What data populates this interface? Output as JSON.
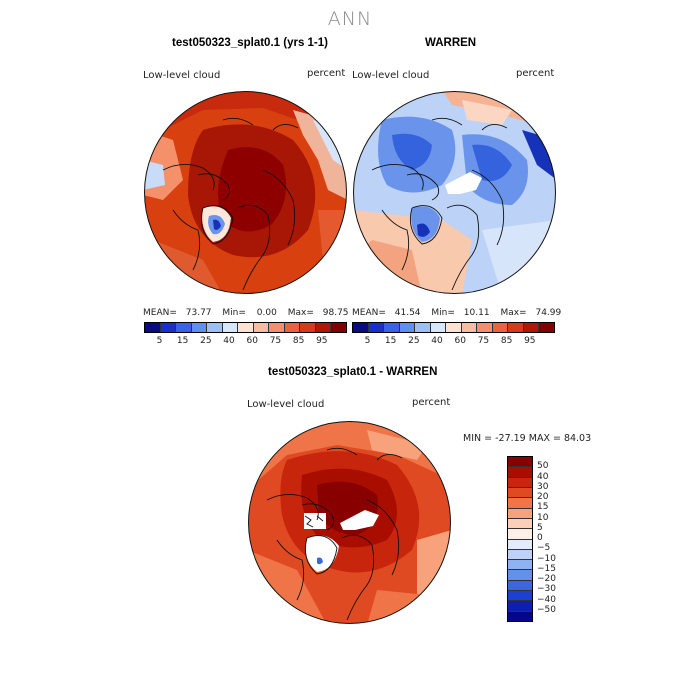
{
  "season": "ANN",
  "panels": [
    {
      "title": "test050323_splat0.1 (yrs 1-1)",
      "var_label": "Low-level cloud",
      "units": "percent",
      "mean_label": "MEAN=",
      "mean": "73.77",
      "min_label": "Min=",
      "min": "0.00",
      "max_label": "Max=",
      "max": "98.75"
    },
    {
      "title": "WARREN",
      "var_label": "Low-level cloud",
      "units": "percent",
      "mean_label": "MEAN=",
      "mean": "41.54",
      "min_label": "Min=",
      "min": "10.11",
      "max_label": "Max=",
      "max": "74.99"
    },
    {
      "title": "test050323_splat0.1 - WARREN",
      "var_label": "Low-level cloud",
      "units": "percent",
      "minmax": "MIN = -27.19 MAX =  84.03"
    }
  ],
  "abs_colorbar": {
    "colors": [
      "#0a0a82",
      "#1b2fc9",
      "#3764e6",
      "#5f8ff0",
      "#9fbef6",
      "#d6e6fb",
      "#fde2d2",
      "#f8bb9e",
      "#f2906c",
      "#e9633f",
      "#d73a1b",
      "#b11606",
      "#820000"
    ],
    "ticks": [
      "5",
      "15",
      "25",
      "40",
      "60",
      "75",
      "85",
      "95"
    ]
  },
  "diff_colorbar": {
    "colors_top_to_bottom": [
      "#880000",
      "#a80d00",
      "#c8260c",
      "#e04a22",
      "#ef7448",
      "#f7a27a",
      "#fcd0b6",
      "#fef0e6",
      "#e2ecfb",
      "#bcd3f7",
      "#8fb2f2",
      "#6490ea",
      "#3a66e2",
      "#1c3fd4",
      "#0e1fb0",
      "#06068a"
    ],
    "ticks": [
      "50",
      "40",
      "30",
      "20",
      "15",
      "10",
      "5",
      "0",
      "−5",
      "−10",
      "−15",
      "−20",
      "−30",
      "−40",
      "−50"
    ]
  },
  "map_colors": {
    "deep_red": "#920000",
    "red": "#c72a0c",
    "orange_red": "#e65228",
    "salmon": "#f4916a",
    "peach": "#fbc8ad",
    "pale": "#fde8dc",
    "pale_blue": "#d7e5fb",
    "light_blue": "#a6c3f4",
    "mid_blue": "#6a94ec",
    "blue": "#3563de",
    "dark_blue": "#1532b8"
  }
}
